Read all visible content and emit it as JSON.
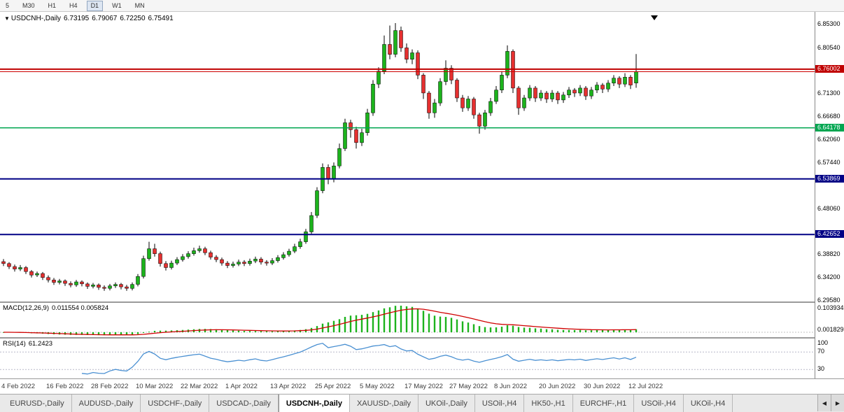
{
  "toolbar": {
    "timeframes": [
      {
        "label": "5",
        "active": false
      },
      {
        "label": "M30",
        "active": false
      },
      {
        "label": "H1",
        "active": false
      },
      {
        "label": "H4",
        "active": false
      },
      {
        "label": "D1",
        "active": true
      },
      {
        "label": "W1",
        "active": false
      },
      {
        "label": "MN",
        "active": false
      }
    ]
  },
  "quote": {
    "dropdown_icon": "▼",
    "symbol": "USDCNH-,Daily",
    "open": "6.73195",
    "high": "6.79067",
    "low": "6.72250",
    "close": "6.75491"
  },
  "chart_data": {
    "type": "candlestick",
    "symbol": "USDCNH-",
    "timeframe": "Daily",
    "price_scale": {
      "top": 6.853,
      "bottom": 6.2958
    },
    "y_axis_labels": [
      "6.85300",
      "6.80540",
      "6.71300",
      "6.66680",
      "6.62060",
      "6.57440",
      "6.48060",
      "6.38820",
      "6.34200",
      "6.29580"
    ],
    "levels": [
      {
        "price": 6.76002,
        "label": "6.76002",
        "color": "#c00000",
        "width": 2
      },
      {
        "price": 6.64178,
        "label": "6.64178",
        "color": "#00a650",
        "width": 1.5
      },
      {
        "price": 6.53869,
        "label": "6.53869",
        "color": "#000085",
        "width": 2
      },
      {
        "price": 6.42652,
        "label": "6.42652",
        "color": "#000085",
        "width": 2
      }
    ],
    "bid": 6.75491,
    "x_labels": [
      "4 Feb 2022",
      "16 Feb 2022",
      "28 Feb 2022",
      "10 Mar 2022",
      "22 Mar 2022",
      "1 Apr 2022",
      "13 Apr 2022",
      "25 Apr 2022",
      "5 May 2022",
      "17 May 2022",
      "27 May 2022",
      "8 Jun 2022",
      "20 Jun 2022",
      "30 Jun 2022",
      "12 Jul 2022"
    ],
    "candles": [
      [
        6.372,
        6.377,
        6.363,
        6.368
      ],
      [
        6.368,
        6.371,
        6.357,
        6.362
      ],
      [
        6.362,
        6.366,
        6.352,
        6.357
      ],
      [
        6.357,
        6.365,
        6.353,
        6.36
      ],
      [
        6.36,
        6.363,
        6.347,
        6.352
      ],
      [
        6.352,
        6.355,
        6.34,
        6.345
      ],
      [
        6.345,
        6.352,
        6.341,
        6.348
      ],
      [
        6.348,
        6.351,
        6.335,
        6.34
      ],
      [
        6.34,
        6.344,
        6.33,
        6.335
      ],
      [
        6.335,
        6.339,
        6.325,
        6.33
      ],
      [
        6.33,
        6.337,
        6.326,
        6.333
      ],
      [
        6.333,
        6.336,
        6.323,
        6.328
      ],
      [
        6.328,
        6.332,
        6.32,
        6.325
      ],
      [
        6.325,
        6.335,
        6.321,
        6.331
      ],
      [
        6.331,
        6.334,
        6.322,
        6.327
      ],
      [
        6.327,
        6.33,
        6.317,
        6.322
      ],
      [
        6.322,
        6.329,
        6.318,
        6.325
      ],
      [
        6.325,
        6.328,
        6.315,
        6.32
      ],
      [
        6.32,
        6.324,
        6.313,
        6.318
      ],
      [
        6.318,
        6.327,
        6.314,
        6.323
      ],
      [
        6.323,
        6.33,
        6.319,
        6.326
      ],
      [
        6.326,
        6.329,
        6.316,
        6.321
      ],
      [
        6.321,
        6.325,
        6.313,
        6.318
      ],
      [
        6.318,
        6.33,
        6.314,
        6.326
      ],
      [
        6.326,
        6.347,
        6.322,
        6.342
      ],
      [
        6.342,
        6.384,
        6.338,
        6.378
      ],
      [
        6.378,
        6.412,
        6.374,
        6.398
      ],
      [
        6.398,
        6.408,
        6.382,
        6.388
      ],
      [
        6.388,
        6.392,
        6.362,
        6.368
      ],
      [
        6.368,
        6.373,
        6.354,
        6.36
      ],
      [
        6.36,
        6.374,
        6.356,
        6.369
      ],
      [
        6.369,
        6.381,
        6.365,
        6.376
      ],
      [
        6.376,
        6.387,
        6.372,
        6.382
      ],
      [
        6.382,
        6.393,
        6.378,
        6.388
      ],
      [
        6.388,
        6.4,
        6.384,
        6.394
      ],
      [
        6.394,
        6.404,
        6.39,
        6.398
      ],
      [
        6.398,
        6.402,
        6.385,
        6.39
      ],
      [
        6.39,
        6.394,
        6.376,
        6.381
      ],
      [
        6.381,
        6.385,
        6.371,
        6.376
      ],
      [
        6.376,
        6.38,
        6.364,
        6.369
      ],
      [
        6.369,
        6.373,
        6.359,
        6.364
      ],
      [
        6.364,
        6.372,
        6.36,
        6.367
      ],
      [
        6.367,
        6.376,
        6.363,
        6.371
      ],
      [
        6.371,
        6.375,
        6.363,
        6.368
      ],
      [
        6.368,
        6.378,
        6.364,
        6.373
      ],
      [
        6.373,
        6.382,
        6.369,
        6.377
      ],
      [
        6.377,
        6.381,
        6.366,
        6.371
      ],
      [
        6.371,
        6.375,
        6.364,
        6.369
      ],
      [
        6.369,
        6.379,
        6.365,
        6.374
      ],
      [
        6.374,
        6.385,
        6.37,
        6.38
      ],
      [
        6.38,
        6.391,
        6.376,
        6.386
      ],
      [
        6.386,
        6.398,
        6.382,
        6.393
      ],
      [
        6.393,
        6.408,
        6.389,
        6.402
      ],
      [
        6.402,
        6.418,
        6.398,
        6.412
      ],
      [
        6.412,
        6.438,
        6.408,
        6.432
      ],
      [
        6.432,
        6.472,
        6.428,
        6.465
      ],
      [
        6.465,
        6.522,
        6.46,
        6.515
      ],
      [
        6.515,
        6.57,
        6.51,
        6.562
      ],
      [
        6.562,
        6.568,
        6.528,
        6.538
      ],
      [
        6.538,
        6.572,
        6.532,
        6.565
      ],
      [
        6.565,
        6.61,
        6.56,
        6.6
      ],
      [
        6.6,
        6.66,
        6.595,
        6.652
      ],
      [
        6.652,
        6.658,
        6.622,
        6.638
      ],
      [
        6.638,
        6.644,
        6.6,
        6.612
      ],
      [
        6.612,
        6.64,
        6.605,
        6.632
      ],
      [
        6.632,
        6.68,
        6.626,
        6.672
      ],
      [
        6.672,
        6.738,
        6.666,
        6.73
      ],
      [
        6.73,
        6.764,
        6.722,
        6.756
      ],
      [
        6.756,
        6.828,
        6.75,
        6.81
      ],
      [
        6.81,
        6.848,
        6.78,
        6.79
      ],
      [
        6.79,
        6.853,
        6.784,
        6.838
      ],
      [
        6.838,
        6.846,
        6.795,
        6.803
      ],
      [
        6.803,
        6.812,
        6.772,
        6.78
      ],
      [
        6.78,
        6.8,
        6.77,
        6.793
      ],
      [
        6.793,
        6.798,
        6.74,
        6.748
      ],
      [
        6.748,
        6.752,
        6.7,
        6.712
      ],
      [
        6.712,
        6.716,
        6.66,
        6.672
      ],
      [
        6.672,
        6.7,
        6.662,
        6.692
      ],
      [
        6.692,
        6.742,
        6.686,
        6.735
      ],
      [
        6.735,
        6.778,
        6.728,
        6.762
      ],
      [
        6.762,
        6.768,
        6.73,
        6.738
      ],
      [
        6.738,
        6.742,
        6.694,
        6.702
      ],
      [
        6.702,
        6.708,
        6.674,
        6.682
      ],
      [
        6.682,
        6.706,
        6.676,
        6.7
      ],
      [
        6.7,
        6.704,
        6.66,
        6.668
      ],
      [
        6.668,
        6.672,
        6.63,
        6.645
      ],
      [
        6.645,
        6.678,
        6.638,
        6.672
      ],
      [
        6.672,
        6.702,
        6.666,
        6.695
      ],
      [
        6.695,
        6.726,
        6.69,
        6.718
      ],
      [
        6.718,
        6.756,
        6.712,
        6.748
      ],
      [
        6.748,
        6.808,
        6.742,
        6.796
      ],
      [
        6.796,
        6.8,
        6.712,
        6.722
      ],
      [
        6.722,
        6.726,
        6.668,
        6.682
      ],
      [
        6.682,
        6.708,
        6.676,
        6.702
      ],
      [
        6.702,
        6.728,
        6.696,
        6.722
      ],
      [
        6.722,
        6.726,
        6.694,
        6.702
      ],
      [
        6.702,
        6.718,
        6.696,
        6.712
      ],
      [
        6.712,
        6.716,
        6.692,
        6.7
      ],
      [
        6.7,
        6.718,
        6.694,
        6.712
      ],
      [
        6.712,
        6.716,
        6.69,
        6.698
      ],
      [
        6.698,
        6.714,
        6.692,
        6.708
      ],
      [
        6.708,
        6.724,
        6.702,
        6.718
      ],
      [
        6.718,
        6.722,
        6.704,
        6.712
      ],
      [
        6.712,
        6.728,
        6.706,
        6.722
      ],
      [
        6.722,
        6.726,
        6.698,
        6.706
      ],
      [
        6.706,
        6.724,
        6.7,
        6.718
      ],
      [
        6.718,
        6.734,
        6.712,
        6.728
      ],
      [
        6.728,
        6.732,
        6.712,
        6.72
      ],
      [
        6.72,
        6.738,
        6.714,
        6.732
      ],
      [
        6.732,
        6.748,
        6.726,
        6.742
      ],
      [
        6.742,
        6.746,
        6.722,
        6.73
      ],
      [
        6.73,
        6.752,
        6.724,
        6.744
      ],
      [
        6.744,
        6.748,
        6.72,
        6.728
      ],
      [
        6.732,
        6.79067,
        6.7225,
        6.75491
      ]
    ],
    "colors": {
      "up": "#1cb31c",
      "down": "#e53030",
      "wick": "#000000",
      "bid_line": "#cc0000",
      "macd_hist": "#1cb31c",
      "macd_signal": "#d00000",
      "rsi_line": "#4a90d2"
    },
    "indicators": {
      "macd": {
        "title": "MACD(12,26,9)",
        "values_text": "0.011554 0.005824",
        "params": [
          12,
          26,
          9
        ],
        "axis_labels": [
          "0.103934",
          "0.001829"
        ]
      },
      "rsi": {
        "title": "RSI(14)",
        "value": "61.2423",
        "period": 14,
        "axis_labels": [
          "100",
          "70",
          "30"
        ],
        "levels": [
          70,
          30
        ]
      }
    }
  },
  "tabs": {
    "items": [
      {
        "label": "EURUSD-,Daily",
        "active": false
      },
      {
        "label": "AUDUSD-,Daily",
        "active": false
      },
      {
        "label": "USDCHF-,Daily",
        "active": false
      },
      {
        "label": "USDCAD-,Daily",
        "active": false
      },
      {
        "label": "USDCNH-,Daily",
        "active": true
      },
      {
        "label": "XAUUSD-,Daily",
        "active": false
      },
      {
        "label": "UKOil-,Daily",
        "active": false
      },
      {
        "label": "USOil-,H4",
        "active": false
      },
      {
        "label": "HK50-,H1",
        "active": false
      },
      {
        "label": "EURCHF-,H1",
        "active": false
      },
      {
        "label": "USOil-,H4",
        "active": false
      },
      {
        "label": "UKOil-,H4",
        "active": false
      }
    ],
    "scroll_left_icon": "◀",
    "scroll_right_icon": "▶"
  }
}
